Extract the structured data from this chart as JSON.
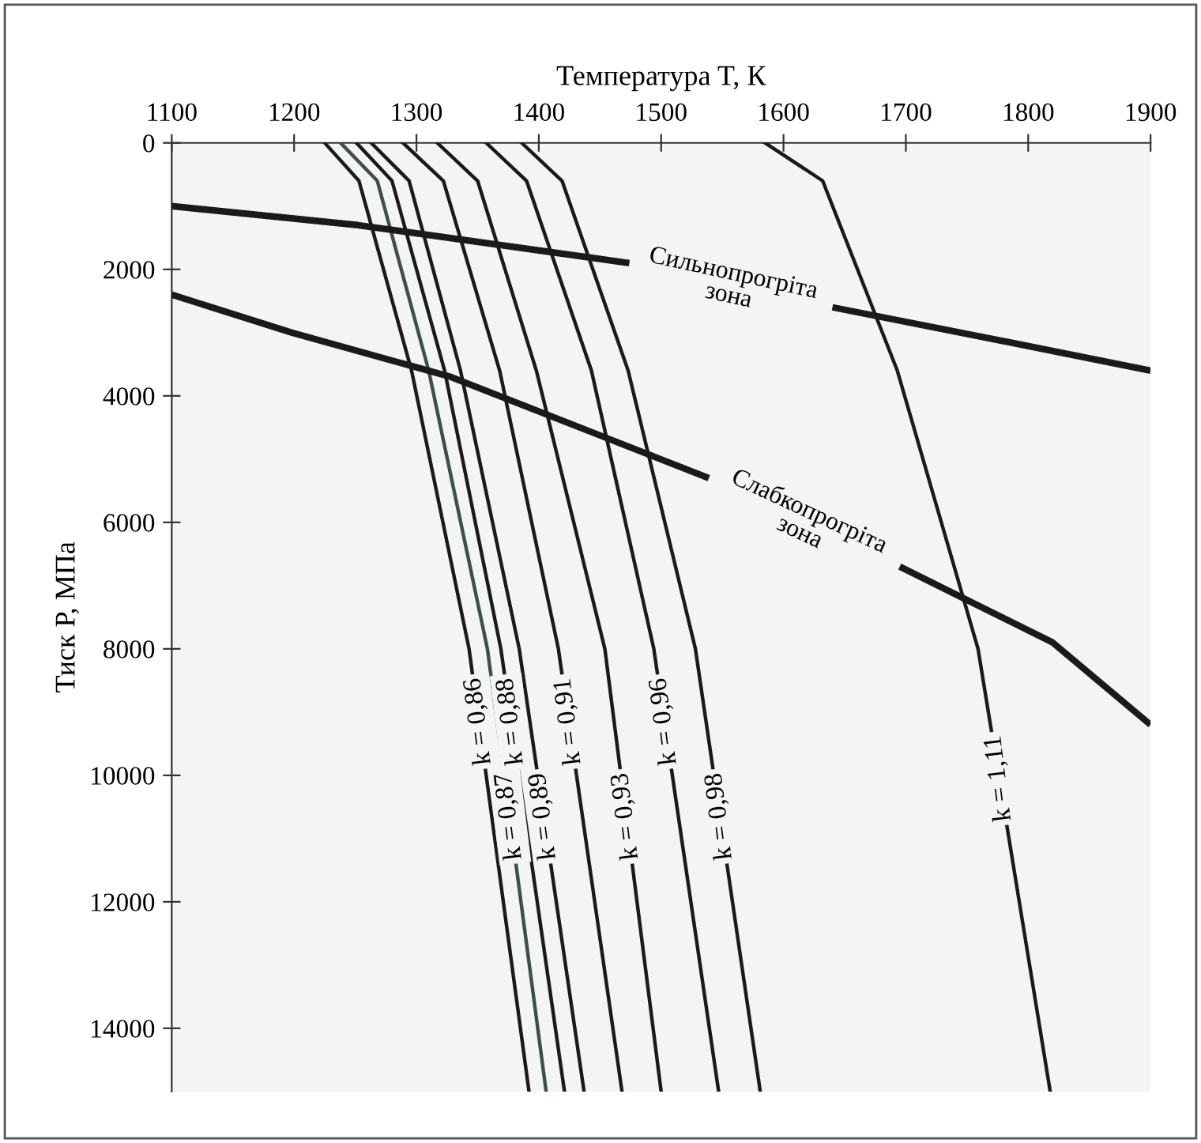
{
  "chart_data": {
    "type": "line",
    "xlabel": "Температура T, К",
    "ylabel": "Тиск P, МПа",
    "xlim": [
      1100,
      1900
    ],
    "xticks": [
      1100,
      1200,
      1300,
      1400,
      1500,
      1600,
      1700,
      1800,
      1900
    ],
    "ylim": [
      15000,
      0
    ],
    "yticks": [
      0,
      2000,
      4000,
      6000,
      8000,
      10000,
      12000,
      14000
    ],
    "grid": false,
    "legend": false,
    "marker": "none",
    "line_style": "solid",
    "series": [
      {
        "color": "#1a1a1a",
        "x": [
          1225,
          1253,
          1296,
          1343,
          1392
        ],
        "values": [
          0,
          600,
          3600,
          8000,
          15000
        ]
      },
      {
        "color": "#3d4f48",
        "x": [
          1238,
          1268,
          1310,
          1358,
          1406
        ],
        "values": [
          0,
          600,
          3600,
          8000,
          15000
        ]
      },
      {
        "color": "#1a1a1a",
        "x": [
          1251,
          1280,
          1323,
          1369,
          1421
        ],
        "values": [
          0,
          600,
          3600,
          8000,
          15000
        ]
      },
      {
        "color": "#1a1a1a",
        "x": [
          1263,
          1294,
          1336,
          1384,
          1437
        ],
        "values": [
          0,
          600,
          3600,
          8000,
          15000
        ]
      },
      {
        "color": "#1a1a1a",
        "x": [
          1289,
          1322,
          1368,
          1416,
          1468
        ],
        "values": [
          0,
          600,
          3600,
          8000,
          15000
        ]
      },
      {
        "color": "#1a1a1a",
        "x": [
          1317,
          1350,
          1398,
          1454,
          1500
        ],
        "values": [
          0,
          600,
          3600,
          8000,
          15000
        ]
      },
      {
        "color": "#1a1a1a",
        "x": [
          1357,
          1390,
          1443,
          1494,
          1547
        ],
        "values": [
          0,
          600,
          3600,
          8000,
          15000
        ]
      },
      {
        "color": "#1a1a1a",
        "x": [
          1386,
          1419,
          1473,
          1528,
          1581
        ],
        "values": [
          0,
          600,
          3600,
          8000,
          15000
        ]
      },
      {
        "color": "#1a1a1a",
        "x": [
          1585,
          1632,
          1693,
          1759,
          1818
        ],
        "values": [
          0,
          600,
          3600,
          8000,
          15000
        ]
      },
      {
        "color": "#1a1a1a",
        "x": [
          1100,
          1252,
          1474,
          1556,
          1640,
          1797,
          1900
        ],
        "values": [
          1000,
          1300,
          1900,
          null,
          2600,
          3200,
          3600
        ]
      },
      {
        "color": "#1a1a1a",
        "x": [
          1100,
          1198,
          1328,
          1539,
          1617,
          1695,
          1820,
          1900
        ],
        "values": [
          2400,
          3000,
          3700,
          5300,
          null,
          6700,
          7900,
          9200
        ]
      }
    ],
    "annotations": [
      "k = 0,86",
      "k = 0,87",
      "k = 0,88",
      "k = 0,89",
      "k = 0,91",
      "k = 0,93",
      "k = 0,96",
      "k = 0,98",
      "k = 1,11",
      "Сильнопрогріта\nзона",
      "Слабкопрогріта\nзона"
    ]
  }
}
